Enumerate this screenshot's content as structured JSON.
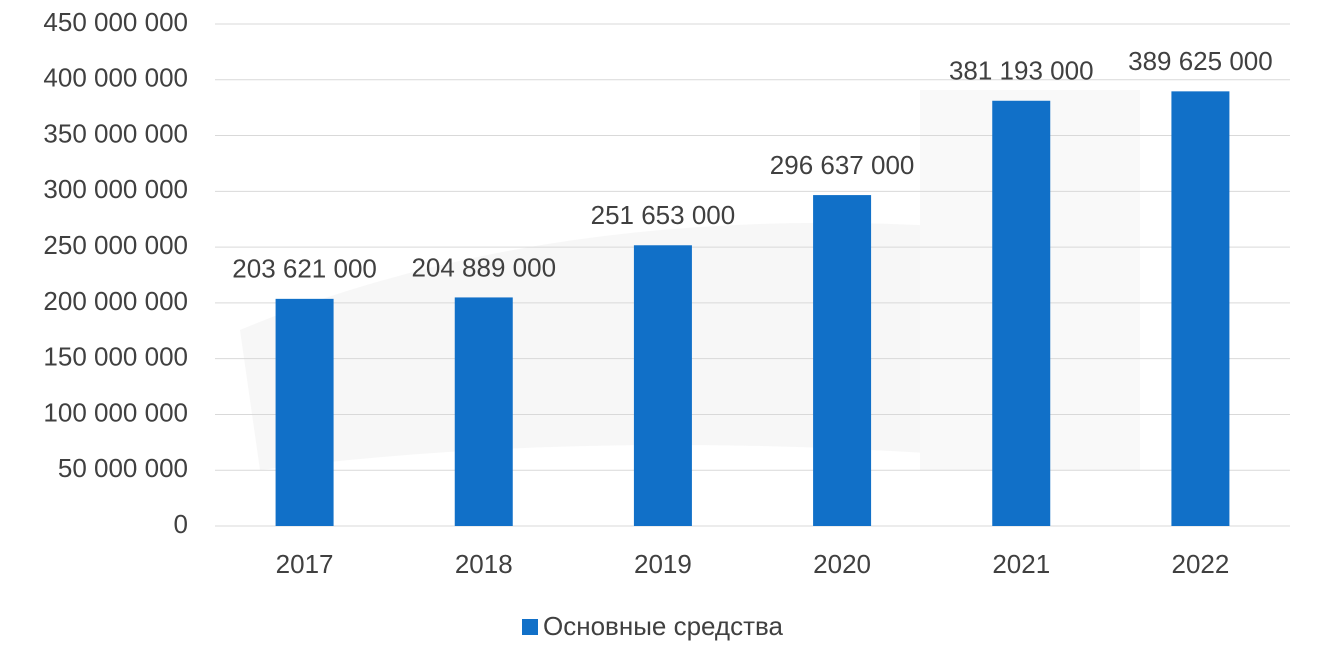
{
  "chart_data": {
    "type": "bar",
    "categories": [
      "2017",
      "2018",
      "2019",
      "2020",
      "2021",
      "2022"
    ],
    "series": [
      {
        "name": "Основные средства",
        "color": "#1170c8",
        "values": [
          203621000,
          204889000,
          251653000,
          296637000,
          381193000,
          389625000
        ],
        "value_labels": [
          "203 621 000",
          "204 889 000",
          "251 653 000",
          "296 637 000",
          "381 193 000",
          "389 625 000"
        ]
      }
    ],
    "ylim": [
      0,
      450000000
    ],
    "yticks": [
      {
        "value": 0,
        "label": "0"
      },
      {
        "value": 50000000,
        "label": "50 000 000"
      },
      {
        "value": 100000000,
        "label": "100 000 000"
      },
      {
        "value": 150000000,
        "label": "150 000 000"
      },
      {
        "value": 200000000,
        "label": "200 000 000"
      },
      {
        "value": 250000000,
        "label": "250 000 000"
      },
      {
        "value": 300000000,
        "label": "300 000 000"
      },
      {
        "value": 350000000,
        "label": "350 000 000"
      },
      {
        "value": 400000000,
        "label": "400 000 000"
      },
      {
        "value": 450000000,
        "label": "450 000 000"
      }
    ],
    "grid": true,
    "legend": "bottom"
  }
}
